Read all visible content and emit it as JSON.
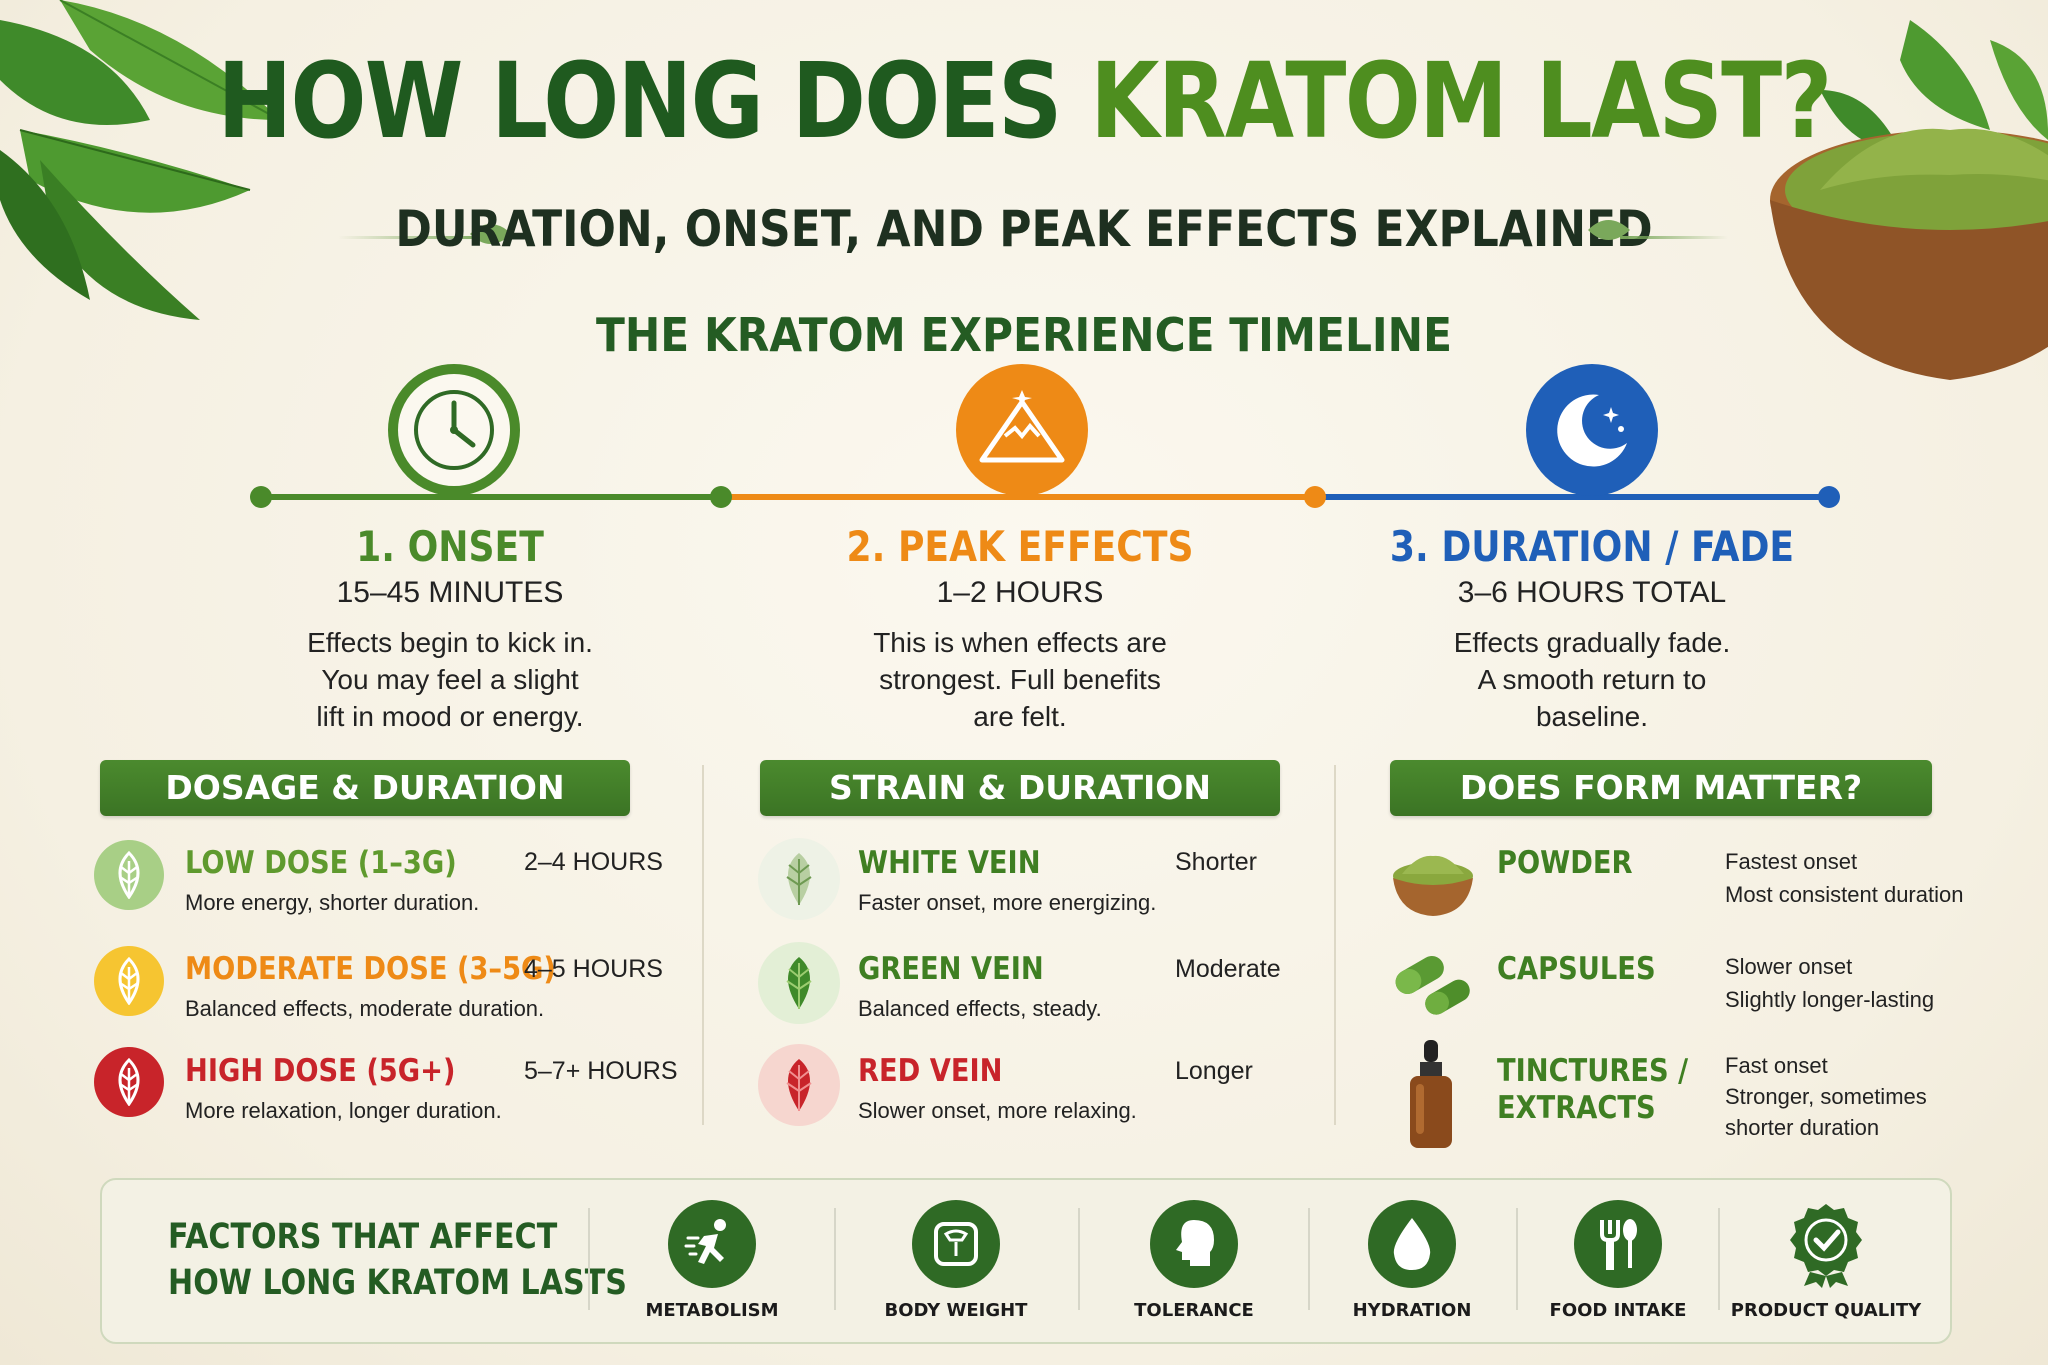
{
  "title": {
    "part1": "HOW LONG DOES ",
    "part2": "KRATOM LAST?"
  },
  "subtitle": "DURATION, ONSET, AND PEAK EFFECTS EXPLAINED",
  "timeline_heading": "THE KRATOM EXPERIENCE TIMELINE",
  "stages": [
    {
      "title": "1. ONSET",
      "time": "15–45 MINUTES",
      "desc": [
        "Effects begin to kick in.",
        "You may feel a slight",
        "lift in mood or energy."
      ],
      "color": "#4a8a2a",
      "icon": "clock-icon"
    },
    {
      "title": "2. PEAK EFFECTS",
      "time": "1–2 HOURS",
      "desc": [
        "This is when effects are",
        "strongest. Full benefits",
        "are felt."
      ],
      "color": "#ee8a16",
      "icon": "mountain-icon"
    },
    {
      "title": "3. DURATION / FADE",
      "time": "3–6 HOURS TOTAL",
      "desc": [
        "Effects gradually fade.",
        "A smooth return to",
        "baseline."
      ],
      "color": "#1f5fb8",
      "icon": "moon-icon"
    }
  ],
  "dosage": {
    "heading": "DOSAGE & DURATION",
    "items": [
      {
        "name": "LOW DOSE (1–3G)",
        "hours": "2–4 HOURS",
        "desc": "More energy, shorter duration.",
        "color": "#5f9a2e",
        "icon": "leaf-icon"
      },
      {
        "name": "MODERATE DOSE (3–5G)",
        "hours": "4–5 HOURS",
        "desc": "Balanced effects, moderate duration.",
        "color": "#ee8a16",
        "icon": "leaf-icon"
      },
      {
        "name": "HIGH DOSE (5G+)",
        "hours": "5–7+ HOURS",
        "desc": "More relaxation, longer duration.",
        "color": "#c8242a",
        "icon": "leaf-icon"
      }
    ]
  },
  "strain": {
    "heading": "STRAIN & DURATION",
    "items": [
      {
        "name": "WHITE VEIN",
        "duration": "Shorter",
        "desc": "Faster onset, more energizing.",
        "color": "#3f7f22",
        "icon": "white-leaf-icon"
      },
      {
        "name": "GREEN VEIN",
        "duration": "Moderate",
        "desc": "Balanced effects, steady.",
        "color": "#3f7f22",
        "icon": "green-leaf-icon"
      },
      {
        "name": "RED VEIN",
        "duration": "Longer",
        "desc": "Slower onset, more relaxing.",
        "color": "#c8242a",
        "icon": "red-leaf-icon"
      }
    ]
  },
  "form": {
    "heading": "DOES FORM MATTER?",
    "items": [
      {
        "name": [
          "POWDER"
        ],
        "notes": [
          "Fastest onset",
          "Most consistent duration"
        ],
        "icon": "powder-bowl-icon"
      },
      {
        "name": [
          "CAPSULES"
        ],
        "notes": [
          "Slower onset",
          "Slightly longer-lasting"
        ],
        "icon": "capsule-icon"
      },
      {
        "name": [
          "TINCTURES /",
          "EXTRACTS"
        ],
        "notes": [
          "Fast onset",
          "Stronger, sometimes",
          "shorter duration"
        ],
        "icon": "dropper-bottle-icon"
      }
    ]
  },
  "factors": {
    "title": [
      "FACTORS THAT AFFECT",
      "HOW LONG KRATOM LASTS"
    ],
    "items": [
      {
        "label": "METABOLISM",
        "icon": "running-icon"
      },
      {
        "label": "BODY WEIGHT",
        "icon": "scale-icon"
      },
      {
        "label": "TOLERANCE",
        "icon": "head-icon"
      },
      {
        "label": "HYDRATION",
        "icon": "water-drop-icon"
      },
      {
        "label": "FOOD INTAKE",
        "icon": "fork-spoon-icon"
      },
      {
        "label": "PRODUCT QUALITY",
        "icon": "quality-badge-icon"
      }
    ]
  },
  "colors": {
    "dark_green": "#1f5a1f",
    "accent_green": "#4e8e1f",
    "orange": "#ee8a16",
    "blue": "#1f5fb8",
    "red": "#c8242a"
  }
}
